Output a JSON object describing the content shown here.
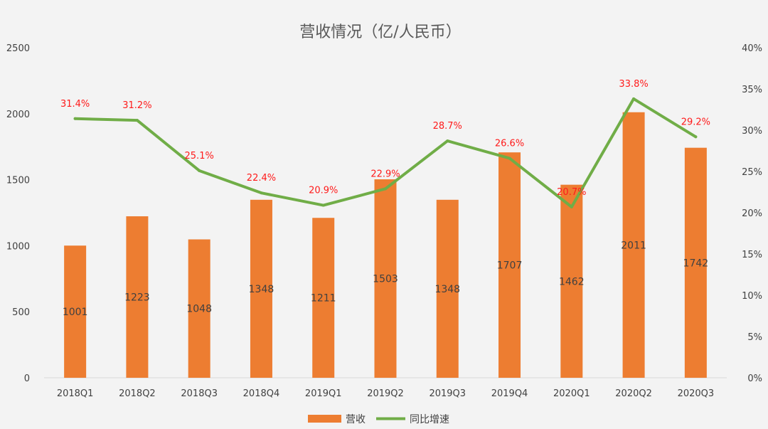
{
  "chart_data": {
    "type": "bar",
    "title": "营收情况（亿/人民币）",
    "categories": [
      "2018Q1",
      "2018Q2",
      "2018Q3",
      "2018Q4",
      "2019Q1",
      "2019Q2",
      "2019Q3",
      "2019Q4",
      "2020Q1",
      "2020Q2",
      "2020Q3"
    ],
    "series": [
      {
        "name": "营收",
        "type": "bar",
        "axis": "left",
        "color": "#ed7d31",
        "values": [
          1001,
          1223,
          1048,
          1348,
          1211,
          1503,
          1348,
          1707,
          1462,
          2011,
          1742
        ]
      },
      {
        "name": "同比增速",
        "type": "line",
        "axis": "right",
        "color": "#70ad47",
        "values": [
          31.4,
          31.2,
          25.1,
          22.4,
          20.9,
          22.9,
          28.7,
          26.6,
          20.7,
          33.8,
          29.2
        ],
        "labels": [
          "31.4%",
          "31.2%",
          "25.1%",
          "22.4%",
          "20.9%",
          "22.9%",
          "28.7%",
          "26.6%",
          "20.7%",
          "33.8%",
          "29.2%"
        ]
      }
    ],
    "ylim_left": [
      0,
      2500
    ],
    "yticks_left": [
      "0",
      "500",
      "1000",
      "1500",
      "2000",
      "2500"
    ],
    "ylim_right": [
      0,
      40
    ],
    "yticks_right": [
      "0%",
      "5%",
      "10%",
      "15%",
      "20%",
      "25%",
      "30%",
      "35%",
      "40%"
    ],
    "grid": false,
    "legend": "bottom-center",
    "label_color": "#ff1a1a"
  }
}
